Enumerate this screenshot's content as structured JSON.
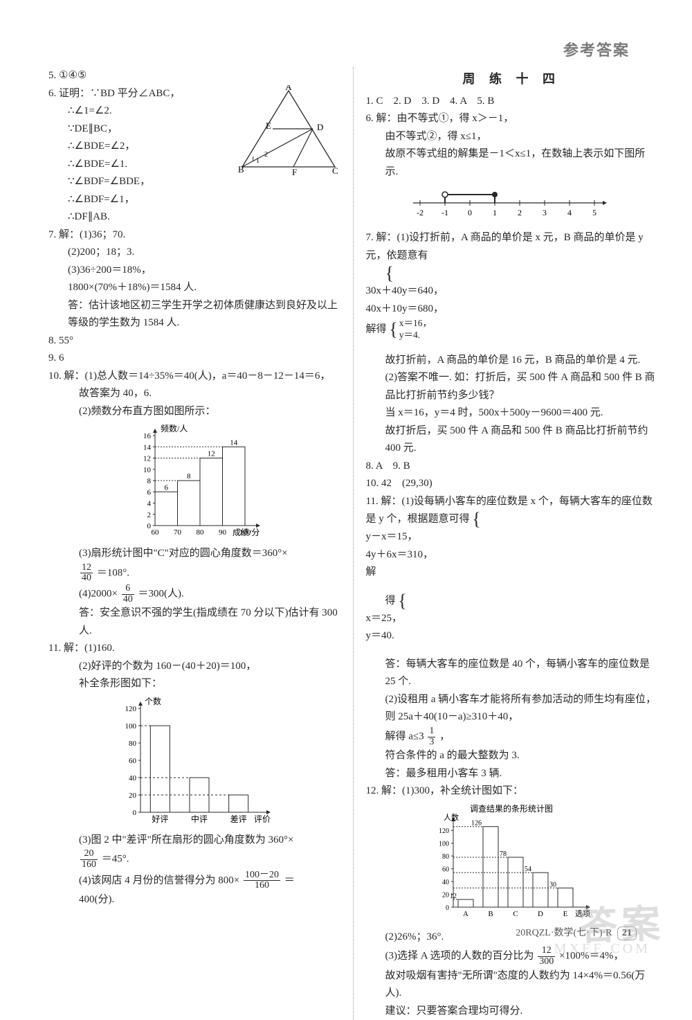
{
  "header": "参考答案",
  "left": {
    "q5": "5. ①④⑤",
    "q6": {
      "head": "6. 证明：∵BD 平分∠ABC，",
      "l1": "∴∠1=∠2.",
      "l2": "∵DE∥BC，",
      "l3": "∴∠BDE=∠2，",
      "l4": "∴∠BDE=∠1.",
      "l5": "∵∠BDF=∠BDE，",
      "l6": "∴∠BDF=∠1，",
      "l7": "∴DF∥AB.",
      "fig": {
        "A": "A",
        "B": "B",
        "C": "C",
        "D": "D",
        "E": "E",
        "F": "F",
        "ang1": "1",
        "ang2": "2"
      }
    },
    "q7": {
      "head": "7. 解：(1)36；70.",
      "l1": "(2)200；18；3.",
      "l2": "(3)36÷200＝18%，",
      "l3": "1800×(70%＋18%)＝1584 人.",
      "l4": "答：估计该地区初三学生开学之初体质健康达到良好及以上等级的学生数为 1584 人."
    },
    "q8": "8. 55°",
    "q9": "9. 6",
    "q10": {
      "head": "10. 解：(1)总人数＝14÷35%＝40(人)，a＝40－8－12－14＝6，",
      "l1": "故答案为 40，6.",
      "l2": "(2)频数分布直方图如图所示：",
      "chart": {
        "ylab": "频数/人",
        "xlab": "成绩/分",
        "yticks": [
          0,
          2,
          4,
          6,
          8,
          10,
          12,
          14,
          16
        ],
        "xticks": [
          60,
          70,
          80,
          90,
          100
        ],
        "bars": [
          6,
          8,
          12,
          14
        ],
        "barColor": "#ffffff",
        "lineColor": "#282828"
      },
      "l3a": "(3)扇形统计图中\"C\"对应的圆心角度数＝360°×",
      "l3b": "＝108°.",
      "frac3": {
        "n": "12",
        "d": "40"
      },
      "l4a": "(4)2000×",
      "frac4": {
        "n": "6",
        "d": "40"
      },
      "l4b": "＝300(人).",
      "l5": "答：安全意识不强的学生(指成绩在 70 分以下)估计有 300 人."
    },
    "q11": {
      "head": "11. 解：(1)160.",
      "l1": "(2)好评的个数为 160－(40＋20)＝100，",
      "l2": "补全条形图如下：",
      "chart": {
        "ylab": "个数",
        "yticks": [
          0,
          20,
          40,
          60,
          80,
          100,
          120
        ],
        "cats": [
          "好评",
          "中评",
          "差评"
        ],
        "xlab": "评价",
        "bars": [
          100,
          40,
          20
        ],
        "barColor": "#ffffff",
        "lineColor": "#282828"
      },
      "l3a": "(3)图 2 中\"差评\"所在扇形的圆心角度数为 360°×",
      "frac3": {
        "n": "20",
        "d": "160"
      },
      "l3b": "＝45°.",
      "l4a": "(4)该网店 4 月份的信誉得分为 800×",
      "frac4": {
        "n": "100－20",
        "d": "160"
      },
      "l4b": "＝",
      "l5": "400(分)."
    }
  },
  "right": {
    "title": "周 练 十 四",
    "mc": "1. C　2. D　3. D　4. A　5. B",
    "q6": {
      "head": "6. 解：由不等式①，得 x＞－1，",
      "l1": "由不等式②，得 x≤1，",
      "l2": "故原不等式组的解集是－1＜x≤1，在数轴上表示如下图所示.",
      "nline": {
        "ticks": [
          -2,
          -1,
          0,
          1,
          2,
          3,
          4,
          5
        ],
        "open": -1,
        "closed": 1
      }
    },
    "q7": {
      "head": "7. 解：(1)设打折前，A 商品的单价是 x 元，B 商品的单价是 y 元，依题意有",
      "eqL": {
        "r1": "30x＋40y＝640，",
        "r2": "40x＋10y＝680，"
      },
      "mid": "解得",
      "eqR": {
        "r1": "x＝16，",
        "r2": "y＝4."
      },
      "l1": "故打折前，A 商品的单价是 16 元，B 商品的单价是 4 元.",
      "l2": "(2)答案不唯一. 如：打折后，买 500 件 A 商品和 500 件 B 商品比打折前节约多少钱？",
      "l3": "当 x＝16，y＝4 时，500x＋500y－9600＝400 元.",
      "l4": "故打折后，买 500 件 A 商品和 500 件 B 商品比打折前节约 400 元."
    },
    "q8_9": "8. A　9. B",
    "q10": "10. 42　(29,30)",
    "q11": {
      "head": "11. 解：(1)设每辆小客车的座位数是 x 个，每辆大客车的座位数是 y 个，根据题意可得",
      "eqL": {
        "r1": "y－x＝15，",
        "r2": "4y＋6x＝310，"
      },
      "mid": "解",
      "l0": "得",
      "eqR": {
        "r1": "x＝25，",
        "r2": "y＝40."
      },
      "l1": "答：每辆大客车的座位数是 40 个，每辆小客车的座位数是 25 个.",
      "l2": "(2)设租用 a 辆小客车才能将所有参加活动的师生均有座位，",
      "l3": "则 25a＋40(10－a)≥310＋40，",
      "l4a": "解得 a≤3",
      "frac4": {
        "n": "1",
        "d": "3"
      },
      "l4b": "，",
      "l5": "符合条件的 a 的最大整数为 3.",
      "l6": "答：最多租用小客车 3 辆."
    },
    "q12": {
      "head": "12. 解：(1)300，补全统计图如下：",
      "chartTitle": "调查结果的条形统计图",
      "ylab": "人数",
      "xlab": "选项",
      "yticks": [
        0,
        20,
        40,
        60,
        80,
        100,
        120
      ],
      "cats": [
        "A",
        "B",
        "C",
        "D",
        "E"
      ],
      "bars": [
        12,
        126,
        78,
        54,
        30
      ],
      "lineColor": "#282828",
      "l1": "(2)26%；36°.",
      "l2a": "(3)选择 A 选项的人数的百分比为",
      "frac2": {
        "n": "12",
        "d": "300"
      },
      "l2b": "×100%＝4%，",
      "l3": "故对吸烟有害持\"无所谓\"态度的人数约为 14×4%＝0.56(万人).",
      "l4": "建议：只要答案合理均可得分."
    }
  },
  "footer": {
    "text": "20RQZL·数学(七·下)·R",
    "page": "21"
  },
  "wm": {
    "main": "答案",
    "sub": "MXEE.COM"
  }
}
